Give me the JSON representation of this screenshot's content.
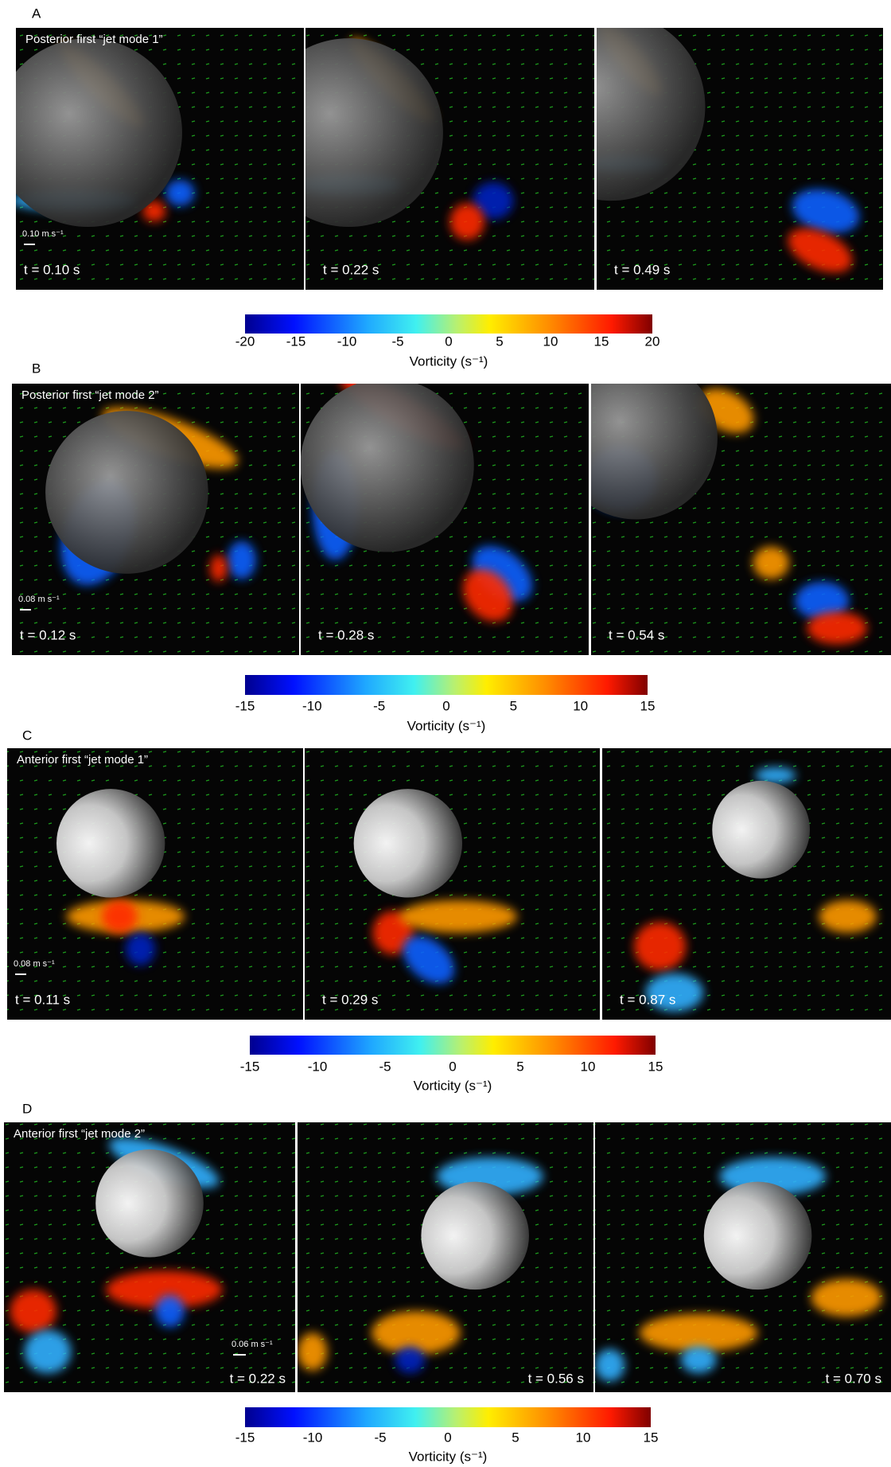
{
  "panels": [
    {
      "label": "A",
      "title": "Posterior first “jet mode 1”",
      "scale_bar": "0.10 m s⁻¹",
      "frames": [
        "t = 0.10 s",
        "t = 0.22 s",
        "t = 0.49 s"
      ],
      "colorbar": {
        "lim": [
          -20,
          20
        ],
        "ticks": [
          -20,
          -15,
          -10,
          -5,
          0,
          5,
          10,
          15,
          20
        ],
        "label": "Vorticity (s⁻¹)"
      }
    },
    {
      "label": "B",
      "title": "Posterior first “jet mode 2”",
      "scale_bar": "0.08 m s⁻¹",
      "frames": [
        "t = 0.12 s",
        "t = 0.28 s",
        "t = 0.54 s"
      ],
      "colorbar": {
        "lim": [
          -15,
          15
        ],
        "ticks": [
          -15,
          -10,
          -5,
          0,
          5,
          10,
          15
        ],
        "label": "Vorticity (s⁻¹)"
      }
    },
    {
      "label": "C",
      "title": "Anterior first “jet mode 1”",
      "scale_bar": "0.08 m s⁻¹",
      "frames": [
        "t = 0.11 s",
        "t = 0.29 s",
        "t = 0.87 s"
      ],
      "colorbar": {
        "lim": [
          -15,
          15
        ],
        "ticks": [
          -15,
          -10,
          -5,
          0,
          5,
          10,
          15
        ],
        "label": "Vorticity (s⁻¹)"
      }
    },
    {
      "label": "D",
      "title": "Anterior first “jet mode 2”",
      "scale_bar": "0.06 m s⁻¹",
      "frames": [
        "t = 0.22 s",
        "t = 0.56 s",
        "t = 0.70 s"
      ],
      "colorbar": {
        "lim": [
          -15,
          15
        ],
        "ticks": [
          -15,
          -10,
          -5,
          0,
          5,
          10,
          15
        ],
        "label": "Vorticity (s⁻¹)"
      }
    }
  ]
}
